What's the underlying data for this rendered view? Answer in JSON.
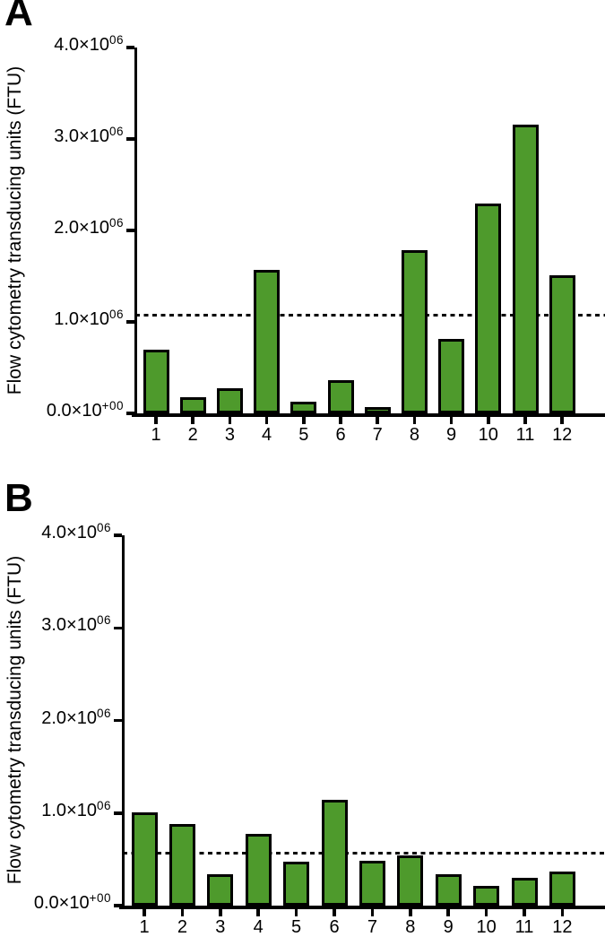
{
  "chart_data": [
    {
      "type": "bar",
      "panel_label": "A",
      "title": "",
      "xlabel": "",
      "ylabel": "Flow cytometry transducing units (FTU)",
      "categories": [
        "1",
        "2",
        "3",
        "4",
        "5",
        "6",
        "7",
        "8",
        "9",
        "10",
        "11",
        "12"
      ],
      "values": [
        700000,
        180000,
        270000,
        1570000,
        125000,
        365000,
        70000,
        1780000,
        810000,
        2290000,
        3160000,
        1510000
      ],
      "dashed_line_value": 1070000,
      "ylim": [
        0,
        4000000
      ],
      "ytick_values": [
        0,
        1000000,
        2000000,
        3000000,
        4000000
      ],
      "ytick_labels": [
        {
          "base": "0.0×10",
          "exp": "+00"
        },
        {
          "base": "1.0×10",
          "exp": "06"
        },
        {
          "base": "2.0×10",
          "exp": "06"
        },
        {
          "base": "3.0×10",
          "exp": "06"
        },
        {
          "base": "4.0×10",
          "exp": "06"
        }
      ],
      "grid": false,
      "legend": null,
      "bar_color": "#4e9a2c",
      "bar_border_color": "#000000",
      "dash_color": "#000000"
    },
    {
      "type": "bar",
      "panel_label": "B",
      "title": "",
      "xlabel": "",
      "ylabel": "Flow cytometry transducing units (FTU)",
      "categories": [
        "1",
        "2",
        "3",
        "4",
        "5",
        "6",
        "7",
        "8",
        "9",
        "10",
        "11",
        "12"
      ],
      "values": [
        1010000,
        880000,
        340000,
        770000,
        470000,
        1140000,
        480000,
        540000,
        340000,
        215000,
        300000,
        370000
      ],
      "dashed_line_value": 570000,
      "ylim": [
        0,
        4000000
      ],
      "ytick_values": [
        0,
        1000000,
        2000000,
        3000000,
        4000000
      ],
      "ytick_labels": [
        {
          "base": "0.0×10",
          "exp": "+00"
        },
        {
          "base": "1.0×10",
          "exp": "06"
        },
        {
          "base": "2.0×10",
          "exp": "06"
        },
        {
          "base": "3.0×10",
          "exp": "06"
        },
        {
          "base": "4.0×10",
          "exp": "06"
        }
      ],
      "grid": false,
      "legend": null,
      "bar_color": "#4e9a2c",
      "bar_border_color": "#000000",
      "dash_color": "#000000"
    }
  ]
}
